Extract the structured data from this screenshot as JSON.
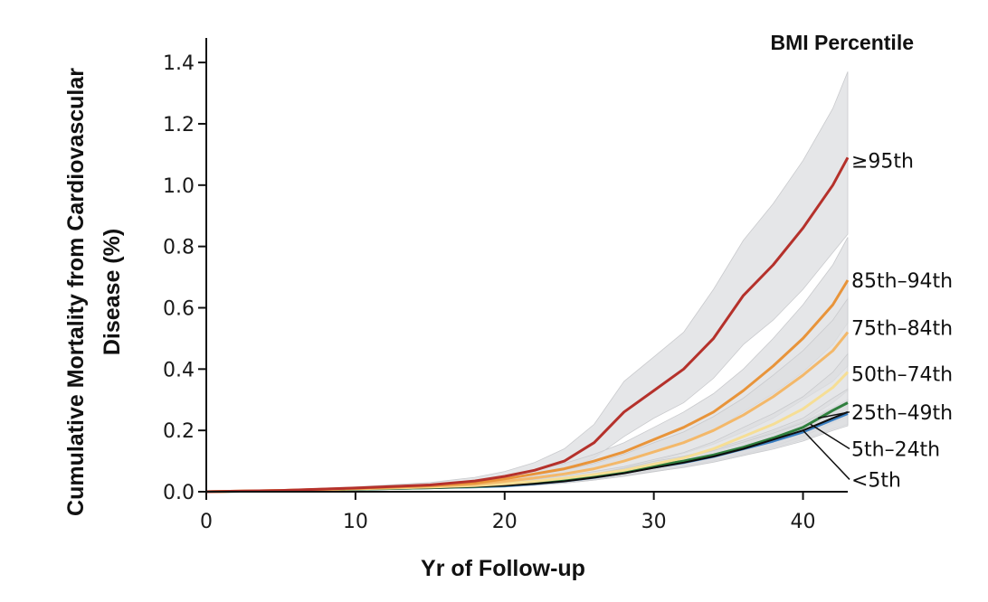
{
  "chart_data": {
    "type": "line",
    "title": "",
    "xlabel": "Yr of Follow-up",
    "ylabel_line1": "Cumulative Mortality from Cardiovascular",
    "ylabel_line2": "Disease (%)",
    "legend_title": "BMI Percentile",
    "xlim": [
      0,
      43
    ],
    "ylim": [
      0,
      1.48
    ],
    "x_ticks": [
      0,
      10,
      20,
      30,
      40
    ],
    "x_tick_labels": [
      "0",
      "10",
      "20",
      "30",
      "40"
    ],
    "y_ticks": [
      0,
      0.2,
      0.4,
      0.6,
      0.8,
      1.0,
      1.2,
      1.4
    ],
    "y_tick_labels": [
      "0.0",
      "0.2",
      "0.4",
      "0.6",
      "0.8",
      "1.0",
      "1.2",
      "1.4"
    ],
    "x": [
      0,
      5,
      10,
      15,
      18,
      20,
      22,
      24,
      26,
      28,
      30,
      32,
      34,
      36,
      38,
      40,
      42,
      43
    ],
    "series": [
      {
        "name": "≥95th",
        "color": "#b5312b",
        "width": 3,
        "values": [
          0,
          0.004,
          0.012,
          0.022,
          0.035,
          0.05,
          0.07,
          0.1,
          0.16,
          0.26,
          0.33,
          0.4,
          0.5,
          0.64,
          0.74,
          0.86,
          1.0,
          1.09
        ],
        "ci_low": [
          0,
          0.002,
          0.008,
          0.015,
          0.024,
          0.035,
          0.048,
          0.07,
          0.11,
          0.18,
          0.24,
          0.29,
          0.37,
          0.48,
          0.56,
          0.66,
          0.78,
          0.84
        ],
        "ci_high": [
          0,
          0.006,
          0.016,
          0.03,
          0.047,
          0.066,
          0.095,
          0.14,
          0.22,
          0.36,
          0.44,
          0.52,
          0.66,
          0.82,
          0.94,
          1.08,
          1.25,
          1.37
        ]
      },
      {
        "name": "85th–94th",
        "color": "#e8943a",
        "width": 3,
        "values": [
          0,
          0.004,
          0.011,
          0.02,
          0.028,
          0.042,
          0.058,
          0.075,
          0.1,
          0.13,
          0.17,
          0.21,
          0.26,
          0.33,
          0.41,
          0.5,
          0.61,
          0.69
        ],
        "ci_low": [
          0,
          0.003,
          0.008,
          0.015,
          0.021,
          0.032,
          0.045,
          0.058,
          0.078,
          0.1,
          0.13,
          0.16,
          0.2,
          0.26,
          0.32,
          0.39,
          0.48,
          0.55
        ],
        "ci_high": [
          0,
          0.005,
          0.014,
          0.025,
          0.035,
          0.052,
          0.071,
          0.092,
          0.122,
          0.16,
          0.21,
          0.26,
          0.32,
          0.4,
          0.5,
          0.61,
          0.74,
          0.83
        ]
      },
      {
        "name": "75th–84th",
        "color": "#f3b86a",
        "width": 3,
        "values": [
          0,
          0.004,
          0.01,
          0.018,
          0.024,
          0.034,
          0.045,
          0.058,
          0.075,
          0.1,
          0.13,
          0.16,
          0.2,
          0.25,
          0.31,
          0.38,
          0.46,
          0.52
        ],
        "ci_low": [
          0,
          0.003,
          0.007,
          0.013,
          0.018,
          0.026,
          0.035,
          0.045,
          0.058,
          0.078,
          0.1,
          0.125,
          0.155,
          0.195,
          0.24,
          0.3,
          0.36,
          0.41
        ],
        "ci_high": [
          0,
          0.005,
          0.013,
          0.023,
          0.03,
          0.042,
          0.055,
          0.071,
          0.092,
          0.122,
          0.16,
          0.195,
          0.245,
          0.305,
          0.38,
          0.46,
          0.56,
          0.63
        ]
      },
      {
        "name": "50th–74th",
        "color": "#f6de95",
        "width": 3,
        "values": [
          0,
          0.003,
          0.009,
          0.015,
          0.02,
          0.026,
          0.034,
          0.044,
          0.056,
          0.07,
          0.09,
          0.11,
          0.14,
          0.18,
          0.22,
          0.27,
          0.34,
          0.39
        ],
        "ci_low": [
          0,
          0.002,
          0.007,
          0.012,
          0.016,
          0.021,
          0.028,
          0.036,
          0.046,
          0.058,
          0.075,
          0.092,
          0.117,
          0.15,
          0.185,
          0.23,
          0.29,
          0.33
        ],
        "ci_high": [
          0,
          0.004,
          0.011,
          0.018,
          0.024,
          0.031,
          0.04,
          0.052,
          0.066,
          0.082,
          0.105,
          0.128,
          0.163,
          0.21,
          0.255,
          0.31,
          0.39,
          0.45
        ]
      },
      {
        "name": "25th–49th",
        "color": "#0d0d0d",
        "width": 2,
        "values": [
          0,
          0.003,
          0.008,
          0.013,
          0.017,
          0.02,
          0.026,
          0.034,
          0.046,
          0.06,
          0.078,
          0.095,
          0.115,
          0.14,
          0.17,
          0.2,
          0.24,
          0.26
        ],
        "ci_low": [
          0,
          0.002,
          0.006,
          0.01,
          0.013,
          0.016,
          0.021,
          0.028,
          0.038,
          0.05,
          0.065,
          0.08,
          0.097,
          0.118,
          0.143,
          0.17,
          0.205,
          0.22
        ],
        "ci_high": [
          0,
          0.004,
          0.01,
          0.016,
          0.021,
          0.024,
          0.031,
          0.04,
          0.054,
          0.07,
          0.091,
          0.11,
          0.133,
          0.162,
          0.197,
          0.23,
          0.275,
          0.3
        ]
      },
      {
        "name": "5th–24th",
        "color": "#2f7f3d",
        "width": 3,
        "values": [
          0,
          0.003,
          0.008,
          0.013,
          0.017,
          0.021,
          0.028,
          0.037,
          0.05,
          0.065,
          0.085,
          0.1,
          0.12,
          0.145,
          0.175,
          0.21,
          0.265,
          0.29
        ],
        "ci_low": [
          0,
          0.002,
          0.006,
          0.01,
          0.013,
          0.017,
          0.023,
          0.03,
          0.041,
          0.054,
          0.071,
          0.084,
          0.101,
          0.122,
          0.148,
          0.18,
          0.225,
          0.245
        ],
        "ci_high": [
          0,
          0.004,
          0.01,
          0.016,
          0.021,
          0.025,
          0.033,
          0.044,
          0.059,
          0.076,
          0.099,
          0.116,
          0.139,
          0.168,
          0.202,
          0.24,
          0.305,
          0.335
        ]
      },
      {
        "name": "<5th",
        "color": "#3a7fc2",
        "width": 3,
        "values": [
          0,
          0.003,
          0.008,
          0.013,
          0.016,
          0.019,
          0.026,
          0.035,
          0.047,
          0.062,
          0.08,
          0.095,
          0.115,
          0.14,
          0.165,
          0.195,
          0.235,
          0.255
        ],
        "ci_low": [
          0,
          0.002,
          0.006,
          0.01,
          0.012,
          0.015,
          0.021,
          0.028,
          0.038,
          0.051,
          0.066,
          0.079,
          0.096,
          0.118,
          0.139,
          0.165,
          0.2,
          0.215
        ],
        "ci_high": [
          0,
          0.004,
          0.01,
          0.016,
          0.02,
          0.023,
          0.031,
          0.042,
          0.056,
          0.073,
          0.094,
          0.111,
          0.134,
          0.162,
          0.191,
          0.225,
          0.27,
          0.295
        ]
      }
    ],
    "legend_labels": [
      {
        "text": "≥95th",
        "y": 1.08,
        "x_anchor": 42.9,
        "y_anchor": 1.09
      },
      {
        "text": "85th–94th",
        "y": 0.69,
        "x_anchor": 42.9,
        "y_anchor": 0.69
      },
      {
        "text": "75th–84th",
        "y": 0.535,
        "x_anchor": 42.9,
        "y_anchor": 0.52
      },
      {
        "text": "50th–74th",
        "y": 0.385,
        "x_anchor": 42.9,
        "y_anchor": 0.39
      },
      {
        "text": "25th–49th",
        "y": 0.26,
        "x_anchor": 41.0,
        "y_anchor": 0.24
      },
      {
        "text": "5th–24th",
        "y": 0.14,
        "x_anchor": 40.5,
        "y_anchor": 0.22
      },
      {
        "text": "<5th",
        "y": 0.04,
        "x_anchor": 40.0,
        "y_anchor": 0.2
      }
    ]
  }
}
